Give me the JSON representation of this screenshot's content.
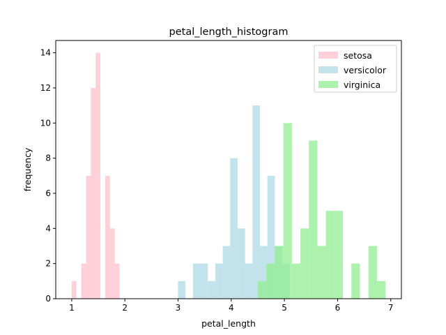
{
  "chart_data": {
    "type": "histogram",
    "title": "petal_length_histogram",
    "xlabel": "petal_length",
    "ylabel": "frequency",
    "xlim": [
      0.7,
      7.2
    ],
    "ylim": [
      0,
      14.7
    ],
    "xticks": [
      1,
      2,
      3,
      4,
      5,
      6,
      7
    ],
    "yticks": [
      0,
      2,
      4,
      6,
      8,
      10,
      12,
      14
    ],
    "grid": false,
    "legend": "top-right",
    "opacity": 0.75,
    "series": [
      {
        "name": "setosa",
        "color": "#ffc0cb",
        "bins": [
          {
            "x0": 1.0,
            "x1": 1.09,
            "count": 1
          },
          {
            "x0": 1.09,
            "x1": 1.18,
            "count": 0
          },
          {
            "x0": 1.18,
            "x1": 1.27,
            "count": 2
          },
          {
            "x0": 1.27,
            "x1": 1.36,
            "count": 7
          },
          {
            "x0": 1.36,
            "x1": 1.45,
            "count": 12
          },
          {
            "x0": 1.45,
            "x1": 1.54,
            "count": 14
          },
          {
            "x0": 1.54,
            "x1": 1.63,
            "count": 0
          },
          {
            "x0": 1.63,
            "x1": 1.72,
            "count": 7
          },
          {
            "x0": 1.72,
            "x1": 1.81,
            "count": 4
          },
          {
            "x0": 1.81,
            "x1": 1.9,
            "count": 2
          }
        ]
      },
      {
        "name": "versicolor",
        "color": "#add8e6",
        "bins": [
          {
            "x0": 3.0,
            "x1": 3.14,
            "count": 1
          },
          {
            "x0": 3.14,
            "x1": 3.28,
            "count": 0
          },
          {
            "x0": 3.28,
            "x1": 3.42,
            "count": 2
          },
          {
            "x0": 3.42,
            "x1": 3.56,
            "count": 2
          },
          {
            "x0": 3.56,
            "x1": 3.7,
            "count": 1
          },
          {
            "x0": 3.7,
            "x1": 3.84,
            "count": 2
          },
          {
            "x0": 3.84,
            "x1": 3.98,
            "count": 3
          },
          {
            "x0": 3.98,
            "x1": 4.12,
            "count": 8
          },
          {
            "x0": 4.12,
            "x1": 4.26,
            "count": 4
          },
          {
            "x0": 4.26,
            "x1": 4.4,
            "count": 2
          },
          {
            "x0": 4.4,
            "x1": 4.54,
            "count": 11
          },
          {
            "x0": 4.54,
            "x1": 4.68,
            "count": 3
          },
          {
            "x0": 4.68,
            "x1": 4.82,
            "count": 7
          },
          {
            "x0": 4.82,
            "x1": 4.96,
            "count": 3
          },
          {
            "x0": 4.96,
            "x1": 5.1,
            "count": 2
          }
        ]
      },
      {
        "name": "virginica",
        "color": "#90ee90",
        "bins": [
          {
            "x0": 4.5,
            "x1": 4.66,
            "count": 1
          },
          {
            "x0": 4.66,
            "x1": 4.82,
            "count": 2
          },
          {
            "x0": 4.82,
            "x1": 4.98,
            "count": 3
          },
          {
            "x0": 4.98,
            "x1": 5.14,
            "count": 10
          },
          {
            "x0": 5.14,
            "x1": 5.3,
            "count": 2
          },
          {
            "x0": 5.3,
            "x1": 5.46,
            "count": 4
          },
          {
            "x0": 5.46,
            "x1": 5.62,
            "count": 9
          },
          {
            "x0": 5.62,
            "x1": 5.78,
            "count": 3
          },
          {
            "x0": 5.78,
            "x1": 5.94,
            "count": 5
          },
          {
            "x0": 5.94,
            "x1": 6.1,
            "count": 5
          },
          {
            "x0": 6.1,
            "x1": 6.26,
            "count": 0
          },
          {
            "x0": 6.26,
            "x1": 6.42,
            "count": 2
          },
          {
            "x0": 6.42,
            "x1": 6.58,
            "count": 0
          },
          {
            "x0": 6.58,
            "x1": 6.74,
            "count": 3
          },
          {
            "x0": 6.74,
            "x1": 6.9,
            "count": 1
          }
        ]
      }
    ]
  }
}
